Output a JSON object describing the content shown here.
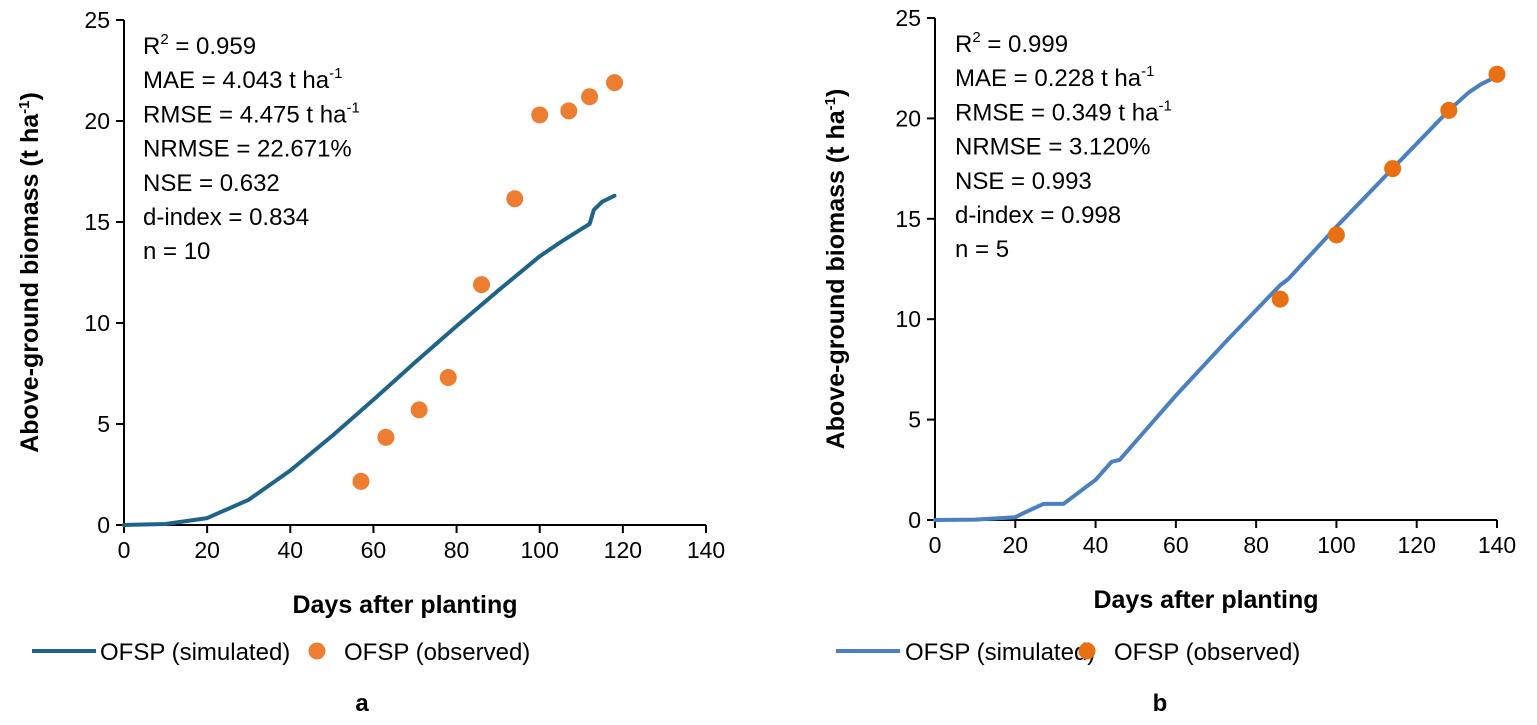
{
  "chart_data": [
    {
      "type": "line",
      "panel_label": "a",
      "xlabel": "Days after planting",
      "ylabel": "Above-ground biomass (t ha",
      "ylabel_sup": "-1",
      "ylabel_end": ")",
      "xlim": [
        0,
        140
      ],
      "ylim": [
        0,
        25
      ],
      "xticks": [
        0,
        20,
        40,
        60,
        80,
        100,
        120,
        140
      ],
      "yticks": [
        0,
        5,
        10,
        15,
        20,
        25
      ],
      "grid": false,
      "legend_placement": "bottom",
      "colors": {
        "simulated": "#1f6488",
        "observed": "#ed7d31"
      },
      "series": [
        {
          "name": "OFSP (simulated)",
          "kind": "line",
          "x": [
            0,
            10,
            20,
            30,
            40,
            50,
            60,
            70,
            80,
            90,
            100,
            105,
            110,
            112,
            113,
            115,
            118
          ],
          "y": [
            0,
            0.05,
            0.34,
            1.25,
            2.7,
            4.4,
            6.2,
            8.05,
            9.85,
            11.6,
            13.3,
            14.0,
            14.65,
            14.9,
            15.6,
            16.0,
            16.3
          ]
        },
        {
          "name": "OFSP (observed)",
          "kind": "scatter",
          "x": [
            57,
            63,
            71,
            78,
            86,
            94,
            100,
            107,
            112,
            118
          ],
          "y": [
            2.16,
            4.34,
            5.7,
            7.3,
            11.9,
            16.15,
            20.3,
            20.5,
            21.2,
            21.9
          ]
        }
      ],
      "stats": [
        {
          "text": "R",
          "sup": "2",
          "rest": " = 0.959"
        },
        {
          "text": "MAE = 4.043 t ha",
          "sup": "-1",
          "rest": ""
        },
        {
          "text": "RMSE = 4.475 t ha",
          "sup": "-1",
          "rest": ""
        },
        {
          "text": "NRMSE = 22.671%",
          "sup": "",
          "rest": ""
        },
        {
          "text": "NSE = 0.632",
          "sup": "",
          "rest": ""
        },
        {
          "text": "d-index = 0.834",
          "sup": "",
          "rest": ""
        },
        {
          "text": "n = 10",
          "sup": "",
          "rest": ""
        }
      ]
    },
    {
      "type": "line",
      "panel_label": "b",
      "xlabel": "Days after planting",
      "ylabel": "Above-ground biomass (t ha",
      "ylabel_sup": "-1",
      "ylabel_end": ")",
      "xlim": [
        0,
        140
      ],
      "ylim": [
        0,
        25
      ],
      "xticks": [
        0,
        20,
        40,
        60,
        80,
        100,
        120,
        140
      ],
      "yticks": [
        0,
        5,
        10,
        15,
        20,
        25
      ],
      "grid": false,
      "legend_placement": "bottom",
      "colors": {
        "simulated": "#4a7fc1",
        "observed": "#e86f12"
      },
      "series": [
        {
          "name": "OFSP (simulated)",
          "kind": "line",
          "x": [
            0,
            10,
            20,
            22,
            27,
            32,
            40,
            44,
            46,
            60,
            73,
            86,
            88,
            100,
            114,
            128,
            133,
            136,
            140
          ],
          "y": [
            0,
            0.02,
            0.14,
            0.34,
            0.8,
            0.8,
            2.0,
            2.9,
            3.0,
            6.2,
            9.0,
            11.7,
            12.0,
            14.6,
            17.5,
            20.4,
            21.3,
            21.7,
            22.1
          ]
        },
        {
          "name": "OFSP (observed)",
          "kind": "scatter",
          "x": [
            86,
            100,
            114,
            128,
            140
          ],
          "y": [
            11.0,
            14.2,
            17.5,
            20.4,
            22.2
          ]
        }
      ],
      "stats": [
        {
          "text": "R",
          "sup": "2",
          "rest": " = 0.999"
        },
        {
          "text": "MAE = 0.228 t ha",
          "sup": "-1",
          "rest": ""
        },
        {
          "text": "RMSE = 0.349 t ha",
          "sup": "-1",
          "rest": ""
        },
        {
          "text": "NRMSE = 3.120%",
          "sup": "",
          "rest": ""
        },
        {
          "text": "NSE = 0.993",
          "sup": "",
          "rest": ""
        },
        {
          "text": "d-index = 0.998",
          "sup": "",
          "rest": ""
        },
        {
          "text": "n = 5",
          "sup": "",
          "rest": ""
        }
      ]
    }
  ]
}
